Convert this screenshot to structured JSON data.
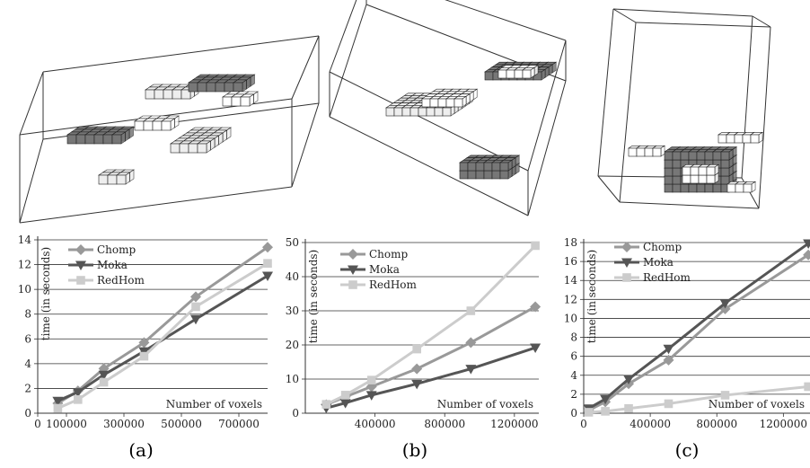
{
  "captions": [
    "(a)",
    "(b)",
    "(c)"
  ],
  "colors": {
    "Chomp": "#999999",
    "Moka": "#555555",
    "RedHom": "#cccccc",
    "voxel_dark": "#777777",
    "voxel_light": "#eeeeee"
  },
  "chart_data": [
    {
      "type": "line",
      "caption": "(a)",
      "xlabel": "Number of voxels",
      "ylabel": "time (in seconds)",
      "xlim": [
        0,
        800000
      ],
      "ylim": [
        0,
        14
      ],
      "xticks": [
        0,
        100000,
        300000,
        500000,
        700000
      ],
      "yticks": [
        0,
        2,
        4,
        6,
        8,
        10,
        12,
        14
      ],
      "grid": "horizontal",
      "legend": "top-left",
      "series": [
        {
          "name": "Chomp",
          "marker": "diamond",
          "x": [
            70000,
            140000,
            230000,
            370000,
            550000,
            800000
          ],
          "y": [
            0.8,
            1.8,
            3.6,
            5.7,
            9.4,
            13.4
          ]
        },
        {
          "name": "Moka",
          "marker": "triangle-down",
          "x": [
            70000,
            140000,
            230000,
            370000,
            550000,
            800000
          ],
          "y": [
            1.0,
            1.7,
            3.1,
            5.0,
            7.6,
            11.1
          ]
        },
        {
          "name": "RedHom",
          "marker": "square",
          "x": [
            70000,
            140000,
            230000,
            370000,
            550000,
            800000
          ],
          "y": [
            0.4,
            1.1,
            2.5,
            4.6,
            8.6,
            12.1
          ]
        }
      ]
    },
    {
      "type": "line",
      "caption": "(b)",
      "xlabel": "Number of voxels",
      "ylabel": "time (in seconds)",
      "xlim": [
        0,
        1340000
      ],
      "ylim": [
        0,
        50
      ],
      "xticks": [
        400000,
        800000,
        1200000
      ],
      "yticks": [
        0,
        10,
        20,
        30,
        40,
        50
      ],
      "grid": "horizontal",
      "legend": "top-left",
      "series": [
        {
          "name": "Chomp",
          "marker": "diamond",
          "x": [
            120000,
            230000,
            380000,
            640000,
            950000,
            1320000
          ],
          "y": [
            2.5,
            4.8,
            7.8,
            13.0,
            20.7,
            31.2
          ]
        },
        {
          "name": "Moka",
          "marker": "triangle-down",
          "x": [
            120000,
            230000,
            380000,
            640000,
            950000,
            1320000
          ],
          "y": [
            1.5,
            3.0,
            5.3,
            8.6,
            13.0,
            19.2
          ]
        },
        {
          "name": "RedHom",
          "marker": "square",
          "x": [
            120000,
            230000,
            380000,
            640000,
            950000,
            1320000
          ],
          "y": [
            2.6,
            5.3,
            9.7,
            18.8,
            30.0,
            49.1
          ]
        }
      ]
    },
    {
      "type": "line",
      "caption": "(c)",
      "xlabel": "Number of voxels",
      "ylabel": "time (in seconds)",
      "xlim": [
        0,
        1360000
      ],
      "ylim": [
        0,
        18
      ],
      "xticks": [
        0,
        400000,
        800000,
        1200000
      ],
      "yticks": [
        0,
        2,
        4,
        6,
        8,
        10,
        12,
        14,
        16,
        18
      ],
      "grid": "horizontal",
      "legend": "top-left",
      "series": [
        {
          "name": "Chomp",
          "marker": "diamond",
          "x": [
            30000,
            130000,
            270000,
            510000,
            850000,
            1350000
          ],
          "y": [
            0.3,
            1.2,
            3.1,
            5.6,
            11.0,
            16.7
          ]
        },
        {
          "name": "Moka",
          "marker": "triangle-down",
          "x": [
            30000,
            130000,
            270000,
            510000,
            850000,
            1350000
          ],
          "y": [
            0.5,
            1.5,
            3.6,
            6.8,
            11.6,
            17.9
          ]
        },
        {
          "name": "RedHom",
          "marker": "square",
          "x": [
            30000,
            130000,
            270000,
            510000,
            850000,
            1350000
          ],
          "y": [
            0.1,
            0.2,
            0.5,
            1.0,
            1.9,
            2.8
          ]
        }
      ]
    }
  ]
}
